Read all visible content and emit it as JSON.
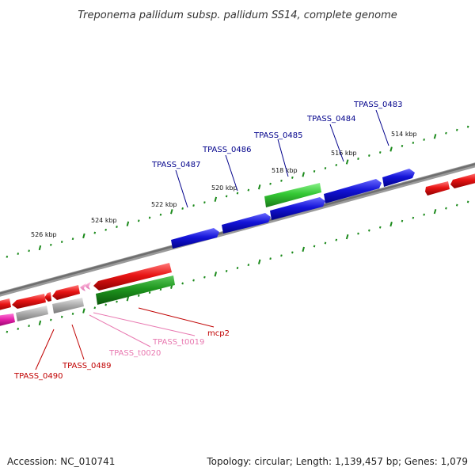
{
  "title": "Treponema pallidum subsp. pallidum SS14, complete genome",
  "footer": {
    "accession": "Accession: NC_010741",
    "summary": "Topology: circular; Length: 1,139,457 bp; Genes: 1,079"
  },
  "colors": {
    "background": "#ffffff",
    "backbone": "#7a7a7a",
    "tick": "#1b8a1b",
    "forward_cds": "#1010d0",
    "reverse_cds": "#e01010",
    "forward_rrna": "#2fc02f",
    "reverse_rrna": "#1f9a1f",
    "trna": "#f080c0",
    "pseudogene": "#a8a8a8",
    "misc": "#e020a0",
    "label_forward": "#00008b",
    "label_reverse": "#c00000",
    "label_trna": "#e878b0"
  },
  "scale_labels": [
    "526 kbp",
    "524 kbp",
    "522 kbp",
    "520 kbp",
    "518 kbp",
    "516 kbp",
    "514 kbp"
  ],
  "gene_labels": {
    "forward": [
      "TPASS_0487",
      "TPASS_0486",
      "TPASS_0485",
      "TPASS_0484",
      "TPASS_0483"
    ],
    "reverse": [
      "TPASS_0490",
      "TPASS_0489",
      "TPASS_t0020",
      "TPASS_t0019",
      "mcp2"
    ]
  }
}
